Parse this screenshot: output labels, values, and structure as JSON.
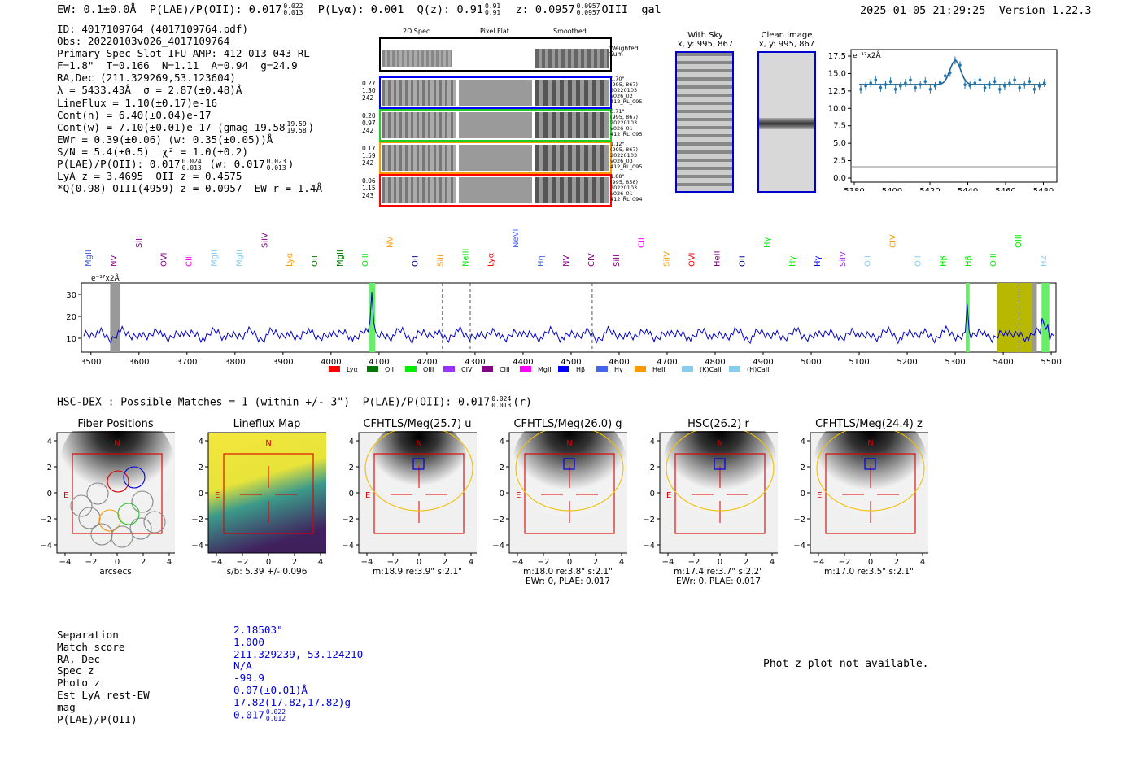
{
  "header": {
    "ew_text": "EW: 0.1±0.0Å",
    "plae_label": "P(LAE)/P(OII): 0.017",
    "plae_hi": "0.022",
    "plae_lo": "0.013",
    "plya": "P(Lyα): 0.001",
    "qz_label": "Q(z): 0.91",
    "qz_hi": "0.91",
    "qz_lo": "0.91",
    "z_label": "z: 0.0957",
    "z_hi": "0.0957",
    "z_lo": "0.0957",
    "line": "OIII",
    "gal": "gal",
    "timestamp": "2025-01-05 21:29:25",
    "version": "Version 1.22.3"
  },
  "info": {
    "id": "ID: 4017109764 (4017109764.pdf)",
    "obs": "Obs: 20220103v026_4017109764",
    "primary": "Primary Spec_Slot_IFU_AMP: 412_013_043_RL",
    "fwhm": "F=1.8\"  T=0.166  N=1.11  A=0.94  g=24.9",
    "radec": "RA,Dec (211.329269,53.123604)",
    "lambda": "λ = 5433.43Å  σ = 2.87(±0.48)Å",
    "lineflux": "LineFlux = 1.10(±0.17)e-16",
    "contn": "Cont(n) = 6.40(±0.04)e-17",
    "contw": "Cont(w) = 7.10(±0.01)e-17 (gmag 19.58",
    "contw_hi": "19.59",
    "contw_lo": "19.58",
    "ewr": "EWr = 0.39(±0.06) (w: 0.35(±0.05))Å",
    "sn": "S/N = 5.4(±0.5)  χ² = 1.0(±0.2)",
    "plae": "P(LAE)/P(OII): 0.017",
    "plae_hi": "0.024",
    "plae_lo": "0.013",
    "plae_w": "(w: 0.017",
    "plae_w_hi": "0.023",
    "plae_w_lo": "0.013",
    "lya": "LyA z = 3.4695  OII z = 0.4575",
    "oiii": "*Q(0.98) OIII(4959) z = 0.0957  EW r = 1.4Å"
  },
  "cutouts2d": {
    "col_titles": [
      "2D Spec",
      "Pixel Flat",
      "Smoothed"
    ],
    "weighted_sum": "Weighted Sum",
    "rows": [
      {
        "left": [
          "0.27",
          "1.30",
          "242"
        ],
        "right": [
          "0.70\"",
          "(995, 867)",
          "20220103",
          "v026_02",
          "412_RL_095"
        ],
        "color": "#0000ff"
      },
      {
        "left": [
          "0.20",
          "0.97",
          "242"
        ],
        "right": [
          "0.71\"",
          "(995, 867)",
          "20220103",
          "v026_01",
          "412_RL_095"
        ],
        "color": "#22cc22"
      },
      {
        "left": [
          "0.17",
          "1.59",
          "242"
        ],
        "right": [
          "1.12\"",
          "(995, 867)",
          "20220103",
          "v026_03",
          "412_RL_095"
        ],
        "color": "#ff9900"
      },
      {
        "left": [
          "0.06",
          "1.15",
          "243"
        ],
        "right": [
          "1.88\"",
          "(995, 858)",
          "20220103",
          "v026_01",
          "412_RL_094"
        ],
        "color": "#ff0000"
      }
    ]
  },
  "sky": {
    "with_sky_title": "With Sky",
    "with_sky_sub": "x, y: 995, 867",
    "clean_title": "Clean Image",
    "clean_sub": "x, y: 995, 867"
  },
  "zoom_plot": {
    "unit": "e⁻¹⁷x2Å",
    "yticks": [
      "17.5",
      "15.0",
      "12.5",
      "10.0",
      "7.5",
      "5.0",
      "2.5",
      "0.0"
    ],
    "xticks": [
      "5380",
      "5400",
      "5420",
      "5440",
      "5460",
      "5480"
    ]
  },
  "full_spectrum": {
    "unit": "e⁻¹⁷x2Å",
    "yticks": [
      "30",
      "20",
      "10"
    ],
    "xticks": [
      "3500",
      "3600",
      "3700",
      "3800",
      "3900",
      "4000",
      "4100",
      "4200",
      "4300",
      "4400",
      "4500",
      "4600",
      "4700",
      "4800",
      "4900",
      "5000",
      "5100",
      "5200",
      "5300",
      "5400",
      "5500"
    ],
    "line_labels": [
      "MgII",
      "NV",
      "SiII",
      "OVI",
      "CIII",
      "MgII",
      "MgII",
      "SiIV",
      "Lyα",
      "OII",
      "MgII",
      "OIII",
      "NV",
      "OII",
      "SiII",
      "NeIII",
      "Lyα",
      "NeVI",
      "Hη",
      "NV",
      "CIV",
      "SiII",
      "CII",
      "SiIV",
      "OVI",
      "HeII",
      "OII",
      "Hγ",
      "Hγ",
      "Hγ",
      "SiIV",
      "OII",
      "CIV",
      "OII",
      "Hβ",
      "Hβ",
      "OIII",
      "OIII",
      "H2"
    ],
    "legend": [
      "Lyα",
      "OII",
      "OIII",
      "CIV",
      "CIII",
      "MgII",
      "Hβ",
      "Hγ",
      "HeII",
      "(K)CaII",
      "(H)CaII"
    ],
    "legend_colors": [
      "#ff0000",
      "#007700",
      "#00ee00",
      "#9933ff",
      "#880088",
      "#ff00ff",
      "#0000ff",
      "#4466ee",
      "#ff9900",
      "#88ccee",
      "#88ccee"
    ]
  },
  "hsc": {
    "title_main": "HSC-DEX : Possible Matches = 1 (within +/- 3\")  P(LAE)/P(OII): 0.017",
    "title_hi": "0.024",
    "title_lo": "0.013",
    "title_band": "(r)"
  },
  "cutouts": [
    {
      "title": "Fiber Positions",
      "caption1": "arcsecs",
      "caption2": ""
    },
    {
      "title": "Lineflux Map",
      "caption1": "s/b: 5.39 +/- 0.096",
      "caption2": ""
    },
    {
      "title": "CFHTLS/Meg(25.7) u",
      "caption1": "m:18.9  re:3.9\"  s:2.1\"",
      "caption2": ""
    },
    {
      "title": "CFHTLS/Meg(26.0) g",
      "caption1": "m:18.0  re:3.8\"  s:2.1\"",
      "caption2": "EWr: 0, PLAE: 0.017"
    },
    {
      "title": "HSC(26.2) r",
      "caption1": "m:17.4  re:3.7\"  s:2.2\"",
      "caption2": "EWr: 0, PLAE: 0.017"
    },
    {
      "title": "CFHTLS/Meg(24.4) z",
      "caption1": "m:17.0  re:3.5\"  s:2.1\"",
      "caption2": ""
    }
  ],
  "cutout_ticks": {
    "y": [
      "4",
      "2",
      "0",
      "−2",
      "−4"
    ],
    "x": [
      "−4",
      "−2",
      "0",
      "2",
      "4"
    ],
    "north": "N",
    "east": "E"
  },
  "match": {
    "labels": [
      "Separation",
      "Match score",
      "RA, Dec",
      "Spec z",
      "Photo z",
      "Est LyA rest-EW",
      "mag",
      "P(LAE)/P(OII)"
    ],
    "values": [
      "2.18503\"",
      "1.000",
      "211.329239, 53.124210",
      "N/A",
      "-99.9",
      "0.07(±0.01)Å",
      "17.82(17.82,17.82)g",
      "0.017"
    ],
    "plae_hi": "0.022",
    "plae_lo": "0.012"
  },
  "photz_note": "Phot z plot not available."
}
